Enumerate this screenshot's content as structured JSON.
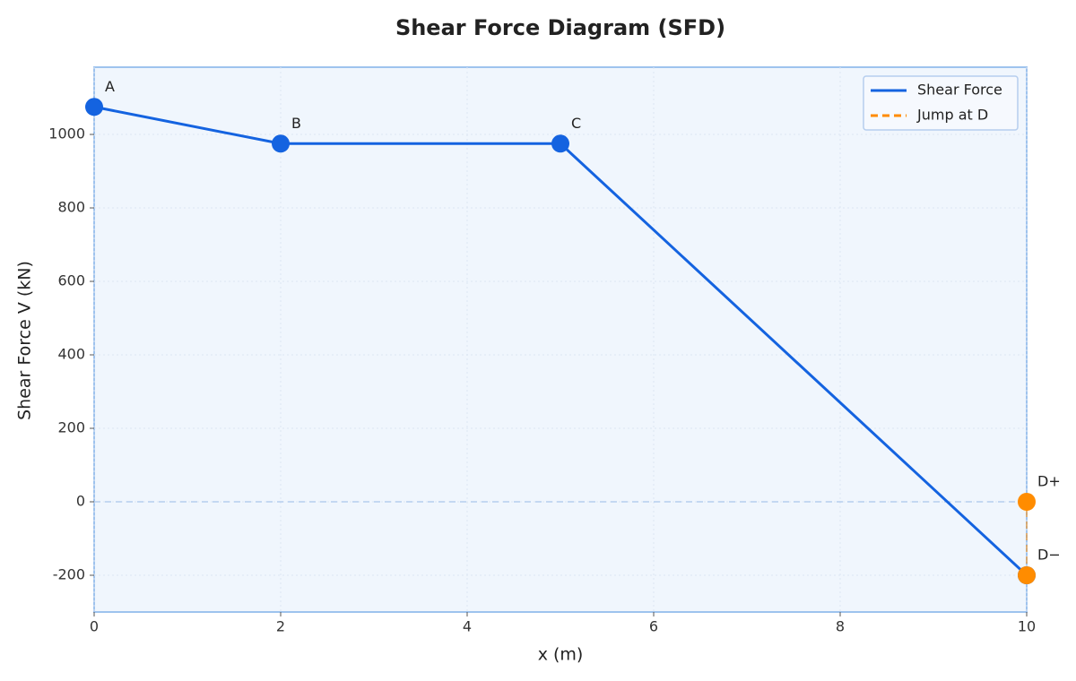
{
  "chart_data": {
    "type": "line",
    "title": "Shear Force Diagram (SFD)",
    "x_label": "x (m)",
    "y_label": "Shear Force V (kN)",
    "xlim": [
      0,
      10
    ],
    "ylim": [
      -300,
      1183
    ],
    "xticks": [
      0,
      2,
      4,
      6,
      8,
      10
    ],
    "yticks": [
      -200,
      0,
      200,
      400,
      600,
      800,
      1000
    ],
    "grid": true,
    "reference_line": 0,
    "legend": "upper right",
    "series": [
      {
        "name": "Shear Force",
        "color": "#1463e0",
        "style": "solid",
        "markers": true,
        "x": [
          0,
          2,
          5,
          10
        ],
        "values": [
          1075,
          975,
          975,
          -200
        ],
        "point_labels": [
          "A",
          "B",
          "C",
          null
        ]
      },
      {
        "name": "Jump at D",
        "color": "#ff8c00",
        "style": "dashed",
        "markers": true,
        "x": [
          10,
          10
        ],
        "values": [
          -200,
          0
        ],
        "point_labels": [
          "D−",
          "D+"
        ]
      }
    ]
  }
}
